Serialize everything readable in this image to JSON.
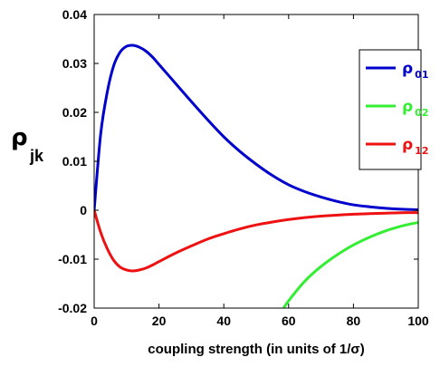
{
  "chart_data": {
    "type": "line",
    "xlabel": "coupling strength (in units of 1/σ)",
    "ylabel_symbol": "ρ",
    "ylabel_subscript": "jk",
    "xlim": [
      0,
      100
    ],
    "ylim": [
      -0.02,
      0.04
    ],
    "x_ticks": [
      0,
      20,
      40,
      60,
      80,
      100
    ],
    "x_tick_labels": [
      "0",
      "20",
      "40",
      "60",
      "80",
      "100"
    ],
    "y_ticks": [
      0.04,
      0.03,
      0.02,
      0.01,
      0,
      -0.01,
      -0.02
    ],
    "y_tick_labels": [
      "0.04",
      "0.03",
      "0.02",
      "0.01",
      "0",
      "-0.01",
      "-0.02"
    ],
    "legend_position": "right",
    "series": [
      {
        "name": "ρ₀₁",
        "symbol": "ρ",
        "subscript": "01",
        "color": "#0000cc",
        "x": [
          0,
          2,
          4,
          6,
          8,
          10,
          12,
          14,
          16,
          18,
          20,
          25,
          30,
          35,
          40,
          45,
          50,
          55,
          60,
          65,
          70,
          75,
          80,
          85,
          90,
          95,
          100
        ],
        "y": [
          0,
          0.0155,
          0.024,
          0.0295,
          0.0323,
          0.0335,
          0.0337,
          0.0333,
          0.0325,
          0.0313,
          0.0298,
          0.026,
          0.0222,
          0.0185,
          0.015,
          0.012,
          0.0094,
          0.0071,
          0.0052,
          0.0038,
          0.0027,
          0.0018,
          0.0011,
          0.0007,
          0.0004,
          0.0002,
          0.0001
        ]
      },
      {
        "name": "ρ₀₂",
        "symbol": "ρ",
        "subscript": "02",
        "color": "#33ee33",
        "x": [
          58,
          60,
          65,
          70,
          75,
          80,
          85,
          90,
          95,
          100
        ],
        "y": [
          -0.0205,
          -0.0185,
          -0.0145,
          -0.0115,
          -0.0091,
          -0.0071,
          -0.0055,
          -0.0042,
          -0.0032,
          -0.0025
        ]
      },
      {
        "name": "ρ₁₂",
        "symbol": "ρ",
        "subscript": "12",
        "color": "#ee1111",
        "x": [
          0,
          2,
          4,
          6,
          8,
          10,
          12,
          14,
          16,
          18,
          20,
          25,
          30,
          35,
          40,
          45,
          50,
          55,
          60,
          65,
          70,
          75,
          80,
          85,
          90,
          95,
          100
        ],
        "y": [
          0,
          -0.0045,
          -0.0078,
          -0.0102,
          -0.0116,
          -0.0122,
          -0.0124,
          -0.0122,
          -0.0118,
          -0.0112,
          -0.0105,
          -0.0088,
          -0.0073,
          -0.0059,
          -0.0048,
          -0.0038,
          -0.003,
          -0.0024,
          -0.0019,
          -0.0015,
          -0.0012,
          -0.001,
          -0.0008,
          -0.0007,
          -0.0006,
          -0.0005,
          -0.0005
        ]
      }
    ]
  }
}
